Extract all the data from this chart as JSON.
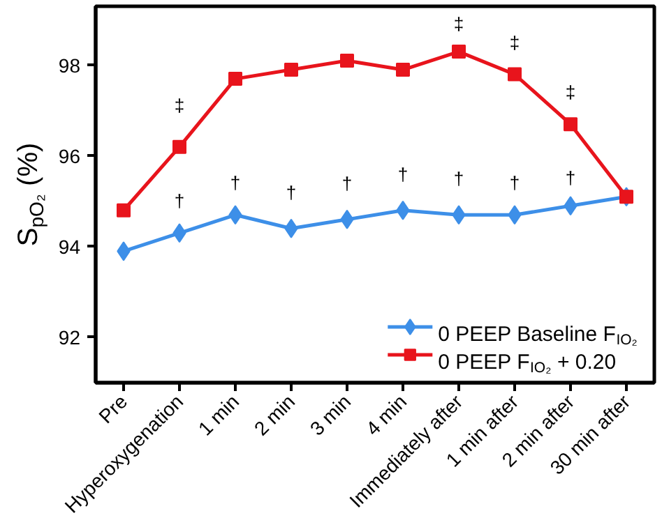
{
  "chart_data": {
    "type": "line",
    "ylabel": "S$_{pO₂}$ (%)",
    "categories": [
      "Pre",
      "Hyperoxygenation",
      "1 min",
      "2 min",
      "3 min",
      "4 min",
      "Immediately after",
      "1 min after",
      "2 min after",
      "30 min after"
    ],
    "series": [
      {
        "name": "0 PEEP Baseline F$_{IO₂}$",
        "color": "#3d8fe8",
        "marker": "diamond",
        "values": [
          93.9,
          94.3,
          94.7,
          94.4,
          94.6,
          94.8,
          94.7,
          94.7,
          94.9,
          95.1
        ]
      },
      {
        "name": "0 PEEP F$_{IO₂}$ + 0.20",
        "color": "#e8141c",
        "marker": "square",
        "values": [
          94.8,
          96.2,
          97.7,
          97.9,
          98.1,
          97.9,
          98.3,
          97.8,
          96.7,
          95.1
        ]
      }
    ],
    "ylim": [
      91,
      99.3
    ],
    "yticks": [
      92,
      94,
      96,
      98
    ],
    "grid": false,
    "legend": "bottom right",
    "line_style": "solid",
    "annotations": [
      "‡",
      "‡",
      "‡",
      "‡",
      "†",
      "†",
      "†",
      "†",
      "†",
      "†",
      "†",
      "†"
    ]
  }
}
